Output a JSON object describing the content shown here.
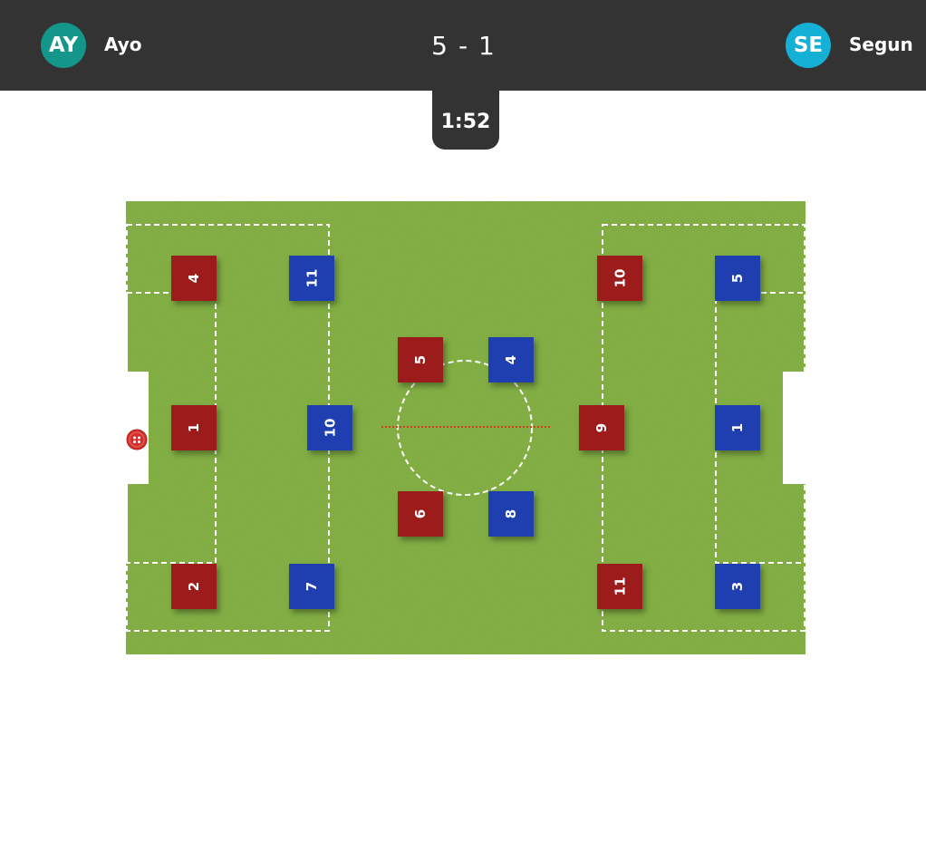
{
  "header": {
    "home": {
      "initials": "AY",
      "name": "Ayo",
      "color": "#14968a"
    },
    "away": {
      "initials": "SE",
      "name": "Segun",
      "color": "#14b0d6"
    },
    "score": {
      "home": "5",
      "separator": "-",
      "away": "1"
    },
    "clock": "1:52"
  },
  "field": {
    "grass_color": "#7aa83a",
    "line_color": "#ffffff",
    "pass_line_color": "#d63b1f"
  },
  "teams": {
    "home_color": "#9c1c1c",
    "away_color": "#1f3fb0"
  },
  "players": {
    "home": [
      "4",
      "1",
      "2",
      "5",
      "6",
      "10",
      "9",
      "11"
    ],
    "away": [
      "11",
      "10",
      "7",
      "4",
      "8",
      "5",
      "1",
      "3"
    ]
  },
  "ball": {
    "icon": "ball-icon"
  }
}
